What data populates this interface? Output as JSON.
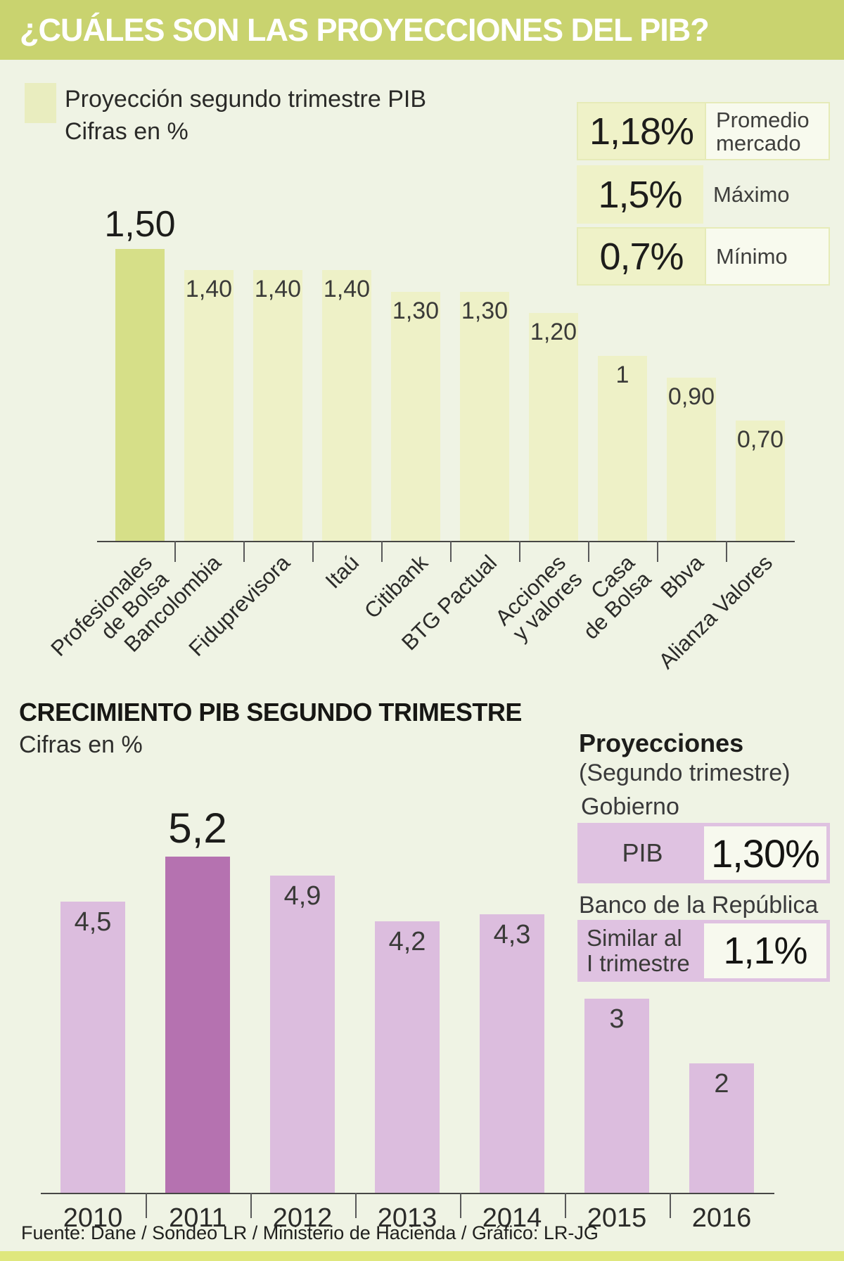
{
  "header": {
    "title": "¿CUÁLES SON LAS PROYECCIONES DEL PIB?"
  },
  "legend": {
    "line1": "Proyección segundo trimestre PIB",
    "line2": "Cifras en %"
  },
  "stats": [
    {
      "value": "1,18%",
      "label": "Promedio mercado"
    },
    {
      "value": "1,5%",
      "label": "Máximo"
    },
    {
      "value": "0,7%",
      "label": "Mínimo"
    }
  ],
  "chart_data": [
    {
      "type": "bar",
      "title": "Proyección segundo trimestre PIB",
      "ylabel": "Cifras en %",
      "categories": [
        "Profesionales\nde Bolsa",
        "Bancolombia",
        "Fiduprevisora",
        "Itaú",
        "Citibank",
        "BTG Pactual",
        "Acciones\ny valores",
        "Casa\nde Bolsa",
        "Bbva",
        "Alianza Valores"
      ],
      "values": [
        1.5,
        1.4,
        1.4,
        1.4,
        1.3,
        1.3,
        1.2,
        1,
        0.9,
        0.7
      ],
      "value_labels": [
        "1,50",
        "1,40",
        "1,40",
        "1,40",
        "1,30",
        "1,30",
        "1,20",
        "1",
        "0,90",
        "0,70"
      ],
      "highlight_index": 0,
      "callout_index": 0,
      "bar_color": "#eef1c7",
      "highlight_color": "#d6df88",
      "ylim": [
        0,
        1.5
      ],
      "grid": false,
      "legend_position": "none"
    },
    {
      "type": "bar",
      "title": "CRECIMIENTO PIB SEGUNDO TRIMESTRE",
      "ylabel": "Cifras en %",
      "categories": [
        "2010",
        "2011",
        "2012",
        "2013",
        "2014",
        "2015",
        "2016"
      ],
      "values": [
        4.5,
        5.2,
        4.9,
        4.2,
        4.3,
        3,
        2
      ],
      "value_labels": [
        "4,5",
        "5,2",
        "4,9",
        "4,2",
        "4,3",
        "3",
        "2"
      ],
      "highlight_index": 1,
      "callout_index": 1,
      "bar_color": "#dcbdde",
      "highlight_color": "#b572b0",
      "ylim": [
        0,
        5.2
      ],
      "grid": false,
      "legend_position": "none"
    }
  ],
  "section2": {
    "title": "CRECIMIENTO PIB SEGUNDO TRIMESTRE",
    "subtitle": "Cifras en %"
  },
  "projections": {
    "title": "Proyecciones",
    "subtitle": "(Segundo trimestre)",
    "gov_label": "Gobierno",
    "gov_row": {
      "label": "PIB",
      "value": "1,30%"
    },
    "banrep_label": "Banco de la República",
    "banrep_row": {
      "label": "Similar al\nI trimestre",
      "value": "1,1%"
    }
  },
  "source": "Fuente: Dane / Sondeo LR / Ministerio de Hacienda / Gráfico: LR-JG",
  "colors": {
    "header_bg": "#c9d36f",
    "page_bg": "#eff3e4",
    "green_highlight": "#d6df88",
    "green_pale": "#eef1c7",
    "purple_highlight": "#b572b0",
    "purple_pale": "#dcbdde",
    "footer_bar": "#dfe77d"
  }
}
